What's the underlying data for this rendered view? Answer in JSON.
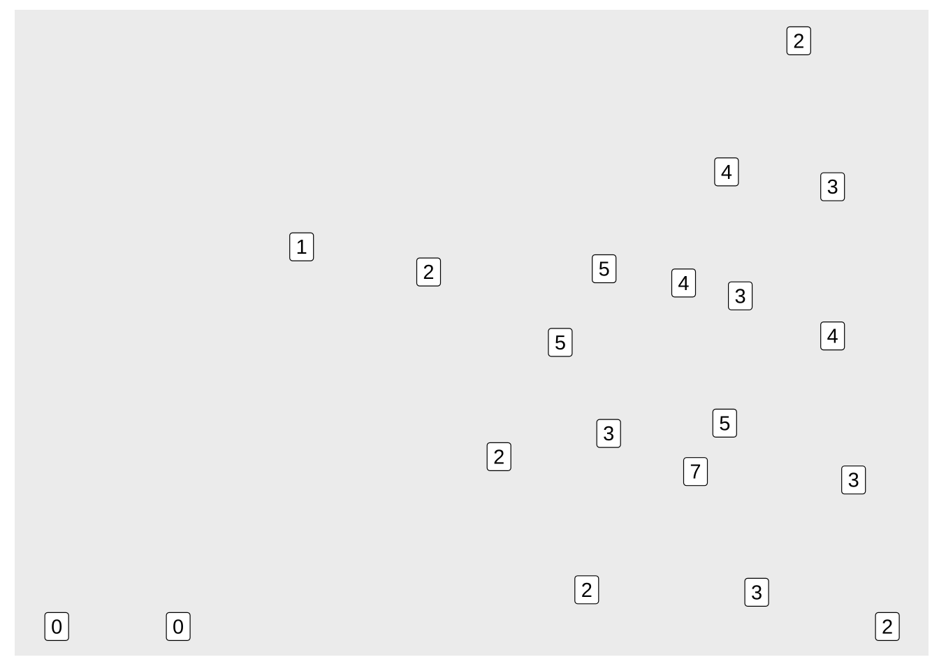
{
  "chart_data": {
    "type": "scatter",
    "title": "",
    "xlabel": "",
    "ylabel": "",
    "grid": false,
    "xlim": [
      0,
      1
    ],
    "ylim": [
      0,
      1
    ],
    "colors": {
      "panel_background": "#EBEBEB",
      "page_background": "#FFFFFF",
      "label_fill": "#FFFFFF",
      "label_border": "#000000",
      "label_text": "#000000"
    },
    "points": [
      {
        "x": 0.858,
        "y": 0.952,
        "label": "2"
      },
      {
        "x": 0.779,
        "y": 0.749,
        "label": "4"
      },
      {
        "x": 0.895,
        "y": 0.726,
        "label": "3"
      },
      {
        "x": 0.314,
        "y": 0.633,
        "label": "1"
      },
      {
        "x": 0.453,
        "y": 0.594,
        "label": "2"
      },
      {
        "x": 0.645,
        "y": 0.599,
        "label": "5"
      },
      {
        "x": 0.732,
        "y": 0.577,
        "label": "4"
      },
      {
        "x": 0.794,
        "y": 0.557,
        "label": "3"
      },
      {
        "x": 0.597,
        "y": 0.485,
        "label": "5"
      },
      {
        "x": 0.895,
        "y": 0.495,
        "label": "4"
      },
      {
        "x": 0.777,
        "y": 0.36,
        "label": "5"
      },
      {
        "x": 0.65,
        "y": 0.344,
        "label": "3"
      },
      {
        "x": 0.53,
        "y": 0.308,
        "label": "2"
      },
      {
        "x": 0.745,
        "y": 0.285,
        "label": "7"
      },
      {
        "x": 0.918,
        "y": 0.272,
        "label": "3"
      },
      {
        "x": 0.626,
        "y": 0.102,
        "label": "2"
      },
      {
        "x": 0.812,
        "y": 0.098,
        "label": "3"
      },
      {
        "x": 0.046,
        "y": 0.045,
        "label": "0"
      },
      {
        "x": 0.179,
        "y": 0.045,
        "label": "0"
      },
      {
        "x": 0.955,
        "y": 0.045,
        "label": "2"
      }
    ]
  }
}
